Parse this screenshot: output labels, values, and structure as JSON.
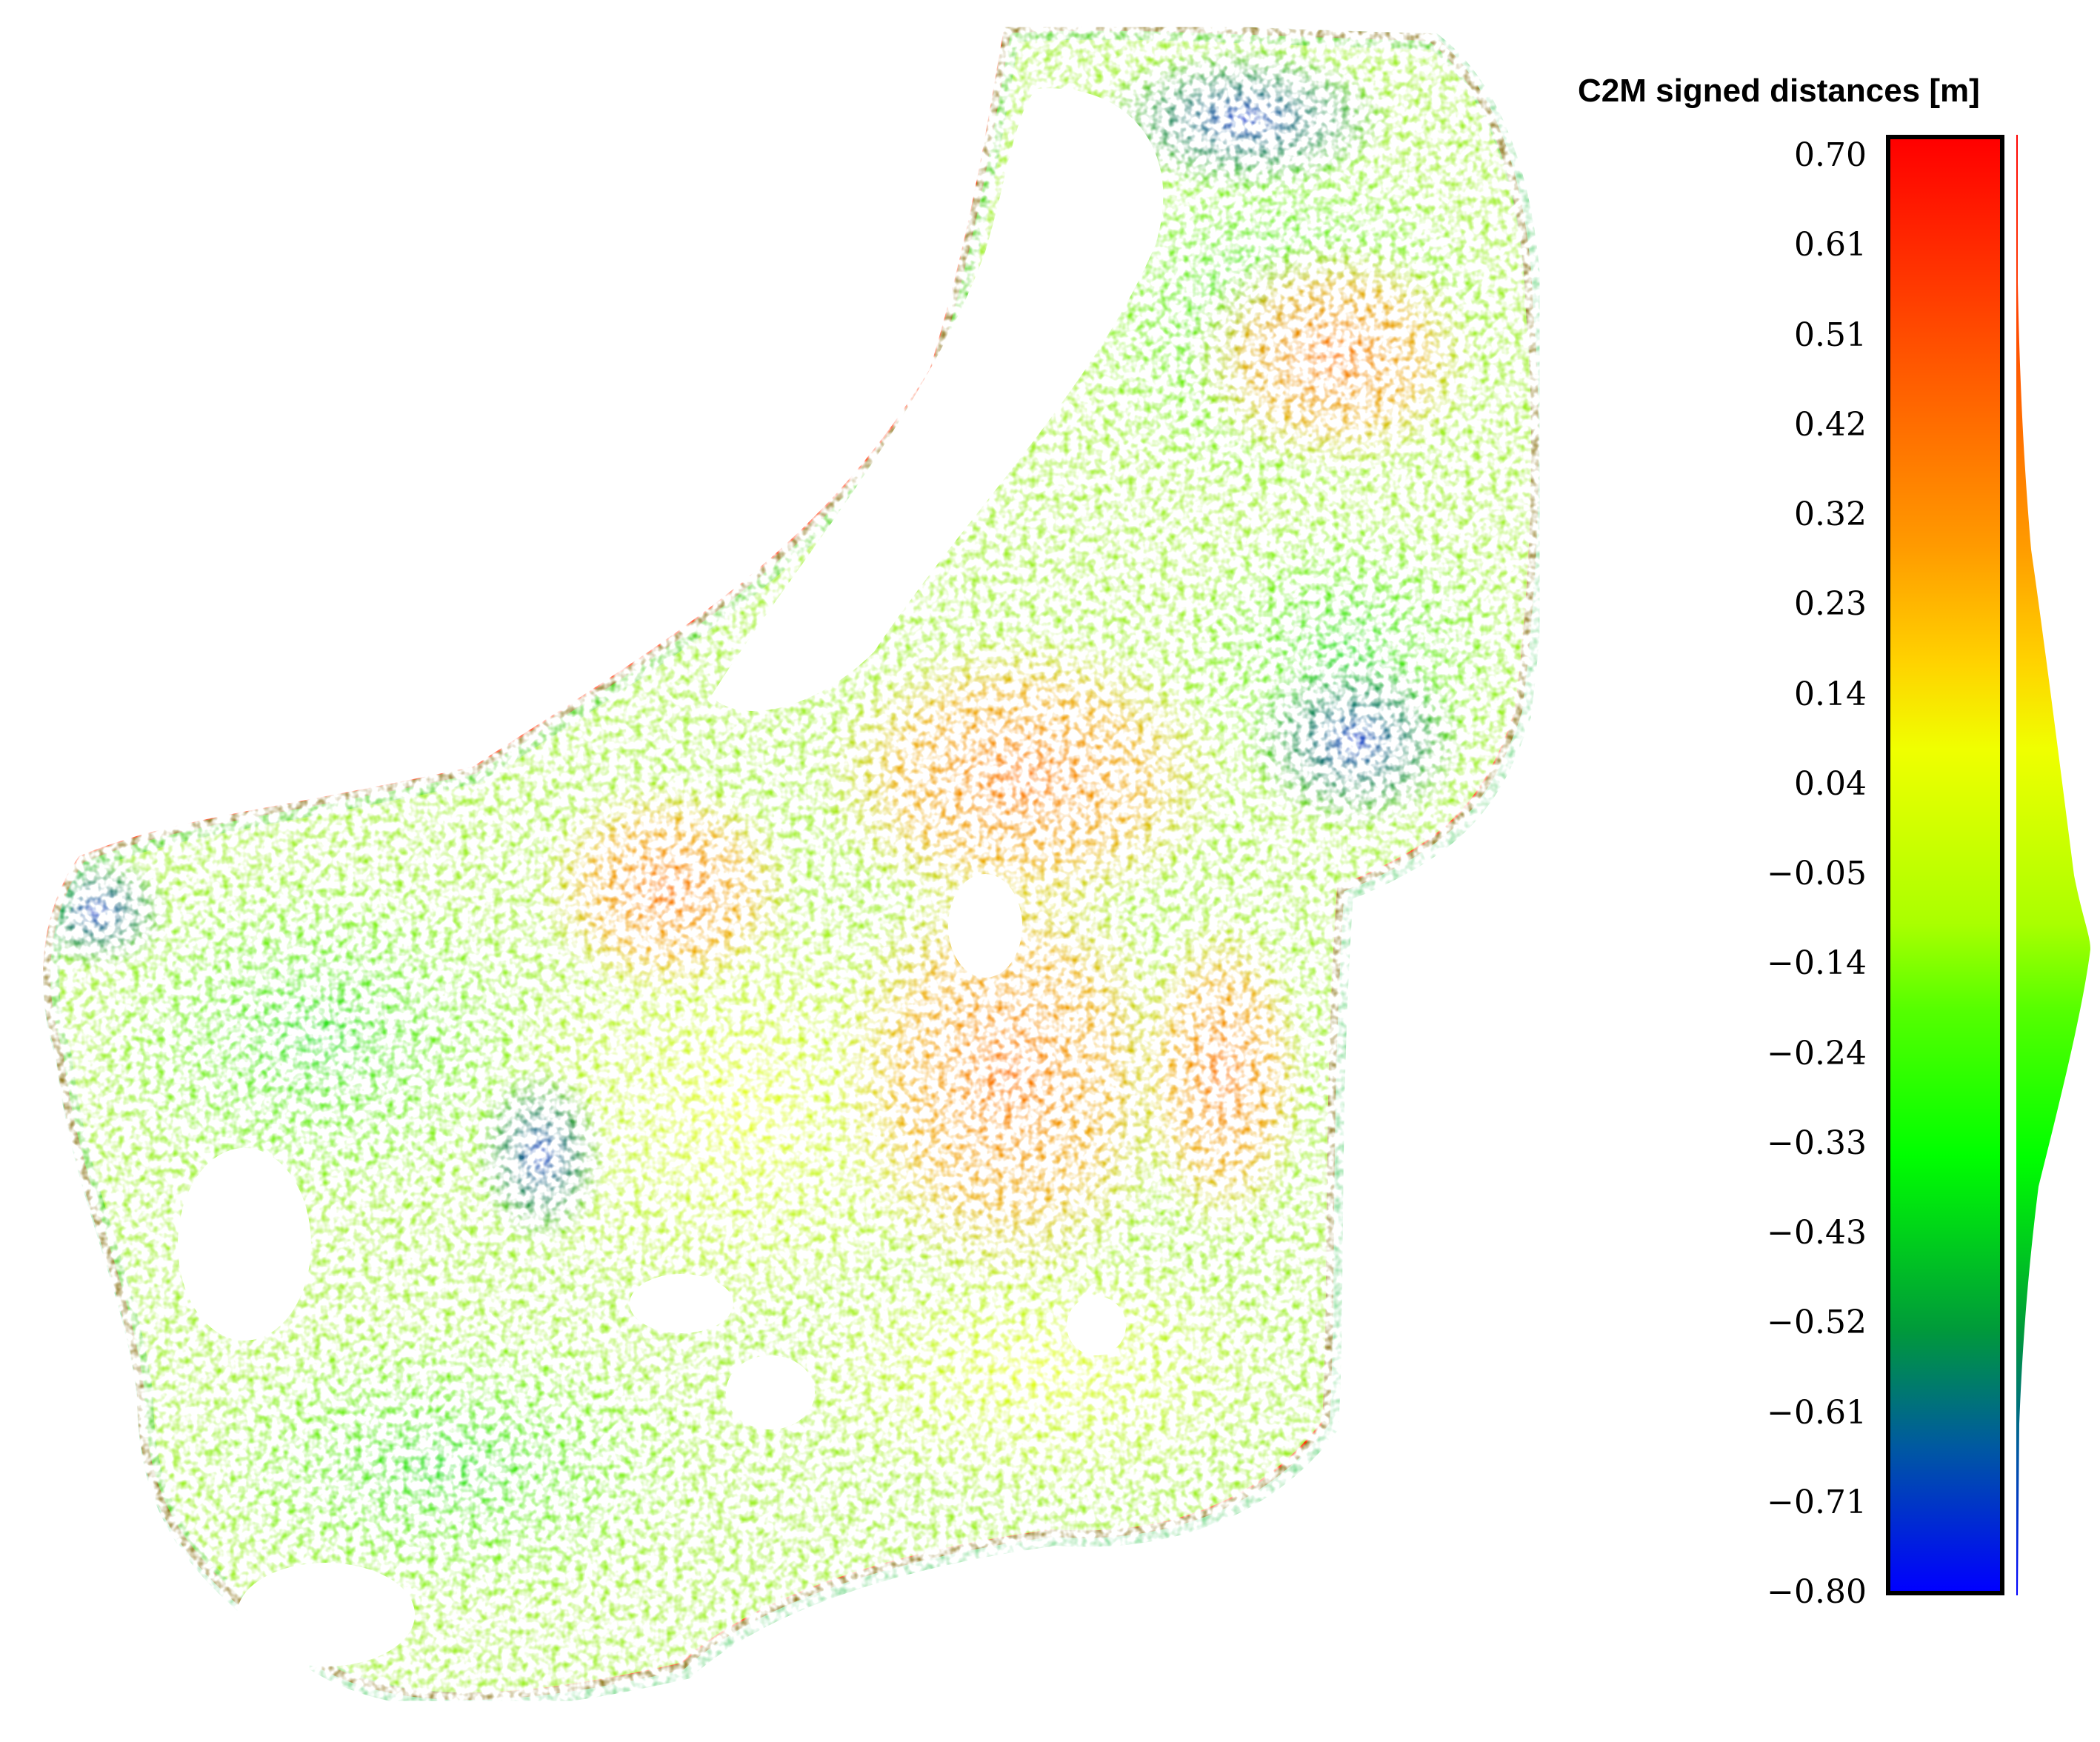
{
  "scale": {
    "title": "C2M signed distances [m]",
    "ticks": [
      "0.70",
      "0.61",
      "0.51",
      "0.42",
      "0.32",
      "0.23",
      "0.14",
      "0.04",
      "−0.05",
      "−0.14",
      "−0.24",
      "−0.33",
      "−0.43",
      "−0.52",
      "−0.61",
      "−0.71",
      "−0.80"
    ],
    "min": -0.8,
    "max": 0.7,
    "colormap": [
      "#0000ff",
      "#005aa0",
      "#009a3a",
      "#00ff00",
      "#55ff00",
      "#aaff00",
      "#f0ff00",
      "#ffd200",
      "#ff9a00",
      "#ff5a00",
      "#ff0000"
    ]
  },
  "map": {
    "background": "#ffffff"
  }
}
